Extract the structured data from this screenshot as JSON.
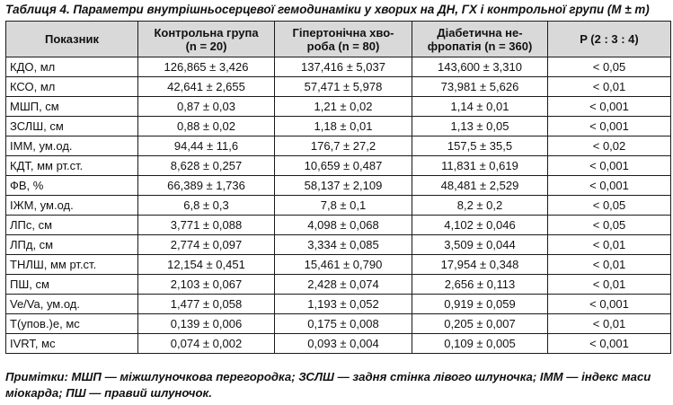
{
  "caption": "Таблиця 4. Параметри внутрішньосерцевої гемодинаміки у хворих на ДН, ГХ і контрольної групи (M ± m)",
  "headers": {
    "col0": "Показник",
    "col1_a": "Контрольна група",
    "col1_b": "(n = 20)",
    "col2_a": "Гіпертонічна хво-",
    "col2_b": "роба (n = 80)",
    "col3_a": "Діабетична не-",
    "col3_b": "фропатія (n = 360)",
    "col4": "P (2 : 3 : 4)"
  },
  "rows": [
    {
      "name": "КДО, мл",
      "control": "126,865 ± 3,426",
      "hypertension": "137,416 ± 5,037",
      "nephropathy": "143,600 ± 3,310",
      "p": "< 0,05"
    },
    {
      "name": "КСО, мл",
      "control": "42,641 ± 2,655",
      "hypertension": "57,471 ± 5,978",
      "nephropathy": "73,981 ± 5,626",
      "p": "< 0,01"
    },
    {
      "name": "МШП, см",
      "control": "0,87 ± 0,03",
      "hypertension": "1,21 ± 0,02",
      "nephropathy": "1,14 ± 0,01",
      "p": "< 0,001"
    },
    {
      "name": "ЗСЛШ, см",
      "control": "0,88 ± 0,02",
      "hypertension": "1,18 ± 0,01",
      "nephropathy": "1,13 ± 0,05",
      "p": "< 0,001"
    },
    {
      "name": "ІММ, ум.од.",
      "control": "94,44 ± 11,6",
      "hypertension": "176,7 ± 27,2",
      "nephropathy": "157,5 ± 35,5",
      "p": "< 0,02"
    },
    {
      "name": "КДТ, мм рт.ст.",
      "control": "8,628 ± 0,257",
      "hypertension": "10,659 ± 0,487",
      "nephropathy": "11,831 ± 0,619",
      "p": "< 0,001"
    },
    {
      "name": "ФВ, %",
      "control": "66,389 ± 1,736",
      "hypertension": "58,137 ± 2,109",
      "nephropathy": "48,481 ± 2,529",
      "p": "< 0,001"
    },
    {
      "name": "ІЖМ, ум.од.",
      "control": "6,8 ± 0,3",
      "hypertension": "7,8 ± 0,1",
      "nephropathy": "8,2 ± 0,2",
      "p": "< 0,05"
    },
    {
      "name": "ЛПс, см",
      "control": "3,771 ± 0,088",
      "hypertension": "4,098 ± 0,068",
      "nephropathy": "4,102 ± 0,046",
      "p": "< 0,05"
    },
    {
      "name": "ЛПд, см",
      "control": "2,774 ± 0,097",
      "hypertension": "3,334 ± 0,085",
      "nephropathy": "3,509 ± 0,044",
      "p": "< 0,01"
    },
    {
      "name": "ТНЛШ, мм рт.ст.",
      "control": "12,154 ± 0,451",
      "hypertension": "15,461 ± 0,790",
      "nephropathy": "17,954 ± 0,348",
      "p": "< 0,01"
    },
    {
      "name": "ПШ, см",
      "control": "2,103 ± 0,067",
      "hypertension": "2,428 ± 0,074",
      "nephropathy": "2,656 ± 0,113",
      "p": "< 0,01"
    },
    {
      "name": "Ve/Va, ум.од.",
      "control": "1,477 ± 0,058",
      "hypertension": "1,193 ± 0,052",
      "nephropathy": "0,919 ± 0,059",
      "p": "< 0,001"
    },
    {
      "name": "Т(упов.)е, мс",
      "control": "0,139 ± 0,006",
      "hypertension": "0,175 ± 0,008",
      "nephropathy": "0,205 ± 0,007",
      "p": "< 0,01"
    },
    {
      "name": "IVRT, мс",
      "control": "0,074 ± 0,002",
      "hypertension": "0,093 ± 0,004",
      "nephropathy": "0,109 ± 0,005",
      "p": "< 0,001"
    }
  ],
  "notes": "Примітки: МШП — міжшлуночкова перегородка; ЗСЛШ — задня стінка лівого шлуночка; ІММ — індекс маси міокарда; ПШ — правий шлуночок."
}
